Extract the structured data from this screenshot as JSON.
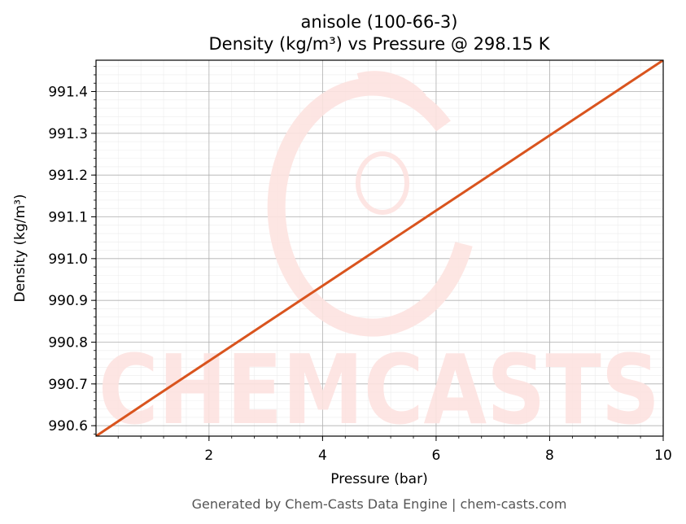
{
  "chart_data": {
    "type": "line",
    "title": "anisole (100-66-3)",
    "subtitle": "Density (kg/m³) vs Pressure @ 298.15 K",
    "xlabel": "Pressure (bar)",
    "ylabel": "Density (kg/m³)",
    "xlim": [
      0.01,
      10
    ],
    "ylim": [
      990.575,
      991.475
    ],
    "x_ticks": [
      2,
      4,
      6,
      8,
      10
    ],
    "x_tick_labels": [
      "2",
      "4",
      "6",
      "8",
      "10"
    ],
    "y_ticks": [
      990.6,
      990.7,
      990.8,
      990.9,
      991.0,
      991.1,
      991.2,
      991.3,
      991.4
    ],
    "y_tick_labels": [
      "990.6",
      "990.7",
      "990.8",
      "990.9",
      "991.0",
      "991.1",
      "991.2",
      "991.3",
      "991.4"
    ],
    "grid": true,
    "series": [
      {
        "color": "#d9541e",
        "x": [
          0.01,
          1,
          2,
          3,
          4,
          5,
          6,
          7,
          8,
          9,
          10
        ],
        "y": [
          990.575,
          990.665,
          990.755,
          990.845,
          990.935,
          991.025,
          991.115,
          991.205,
          991.295,
          991.385,
          991.475
        ]
      }
    ]
  },
  "watermark": {
    "text": "CHEMCASTS",
    "color": "#fde3e0"
  },
  "footer": "Generated by Chem-Casts Data Engine | chem-casts.com"
}
